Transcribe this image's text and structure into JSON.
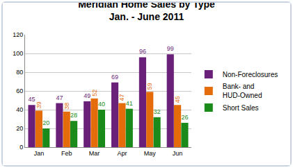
{
  "chart_data": {
    "type": "bar",
    "title": "Meridian Home Sales by Type",
    "subtitle": "Jan. - June 2011",
    "categories": [
      "Jan",
      "Feb",
      "Mar",
      "Apr",
      "May",
      "Jun"
    ],
    "series": [
      {
        "name": "Non-Foreclosures",
        "color": "#6a1f78",
        "values": [
          45,
          47,
          49,
          69,
          96,
          99
        ]
      },
      {
        "name": "Bank- and HUD-Owned",
        "color": "#e46c0a",
        "values": [
          39,
          38,
          52,
          47,
          59,
          45
        ]
      },
      {
        "name": "Short Sales",
        "color": "#1a8a1a",
        "values": [
          20,
          28,
          40,
          41,
          32,
          26
        ]
      }
    ],
    "ylim": [
      0,
      120
    ],
    "yticks": [
      0,
      20,
      40,
      60,
      80,
      100,
      120
    ],
    "grid": true,
    "legend": "right",
    "data_labels": true
  }
}
